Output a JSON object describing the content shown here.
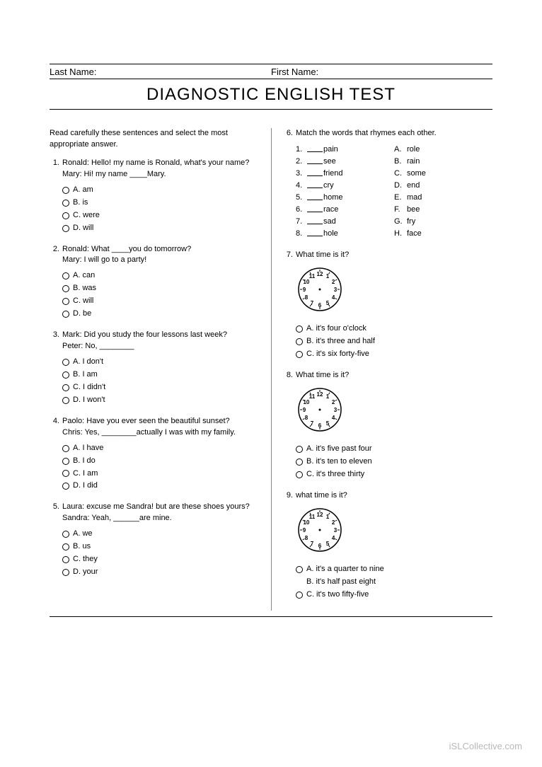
{
  "header": {
    "last_name_label": "Last Name:",
    "first_name_label": "First Name:",
    "title": "DIAGNOSTIC ENGLISH TEST"
  },
  "instructions": "Read carefully these sentences and select the most appropriate answer.",
  "questions_left": [
    {
      "num": "1.",
      "lines": [
        "Ronald: Hello! my name is Ronald, what's your name?",
        "Mary: Hi! my name ____Mary."
      ],
      "opts": [
        "A. am",
        "B. is",
        "C. were",
        "D. will"
      ]
    },
    {
      "num": "2.",
      "lines": [
        "Ronald: What ____you do tomorrow?",
        "Mary: I will go to a party!"
      ],
      "opts": [
        "A. can",
        "B. was",
        "C. will",
        "D. be"
      ]
    },
    {
      "num": "3.",
      "lines": [
        "Mark: Did you study the four lessons last week?",
        "Peter: No, ________"
      ],
      "opts": [
        "A. I don't",
        "B. I am",
        "C. I didn't",
        "D. I won't"
      ]
    },
    {
      "num": "4.",
      "lines": [
        "Paolo: Have you ever seen the beautiful sunset?",
        "Chris: Yes, ________actually I was with my family."
      ],
      "opts": [
        "A. I have",
        "B. I do",
        "C. I am",
        "D. I did"
      ]
    },
    {
      "num": "5.",
      "lines": [
        "Laura: excuse me Sandra! but are these shoes yours?",
        "Sandra: Yeah, ______are mine."
      ],
      "opts": [
        "A. we",
        "B. us",
        "C. they",
        "D. your"
      ]
    }
  ],
  "q6": {
    "num": "6.",
    "text": "Match the words that rhymes each other.",
    "left": [
      {
        "n": "1.",
        "w": "pain"
      },
      {
        "n": "2.",
        "w": "see"
      },
      {
        "n": "3.",
        "w": "friend"
      },
      {
        "n": "4.",
        "w": "cry"
      },
      {
        "n": "5.",
        "w": "home"
      },
      {
        "n": "6.",
        "w": "race"
      },
      {
        "n": "7.",
        "w": "sad"
      },
      {
        "n": "8.",
        "w": "hole"
      }
    ],
    "right": [
      {
        "l": "A.",
        "w": "role"
      },
      {
        "l": "B.",
        "w": "rain"
      },
      {
        "l": "C.",
        "w": "some"
      },
      {
        "l": "D.",
        "w": "end"
      },
      {
        "l": "E.",
        "w": "mad"
      },
      {
        "l": "F.",
        "w": "bee"
      },
      {
        "l": "G.",
        "w": "fry"
      },
      {
        "l": "H.",
        "w": "face"
      }
    ]
  },
  "time_questions": [
    {
      "num": "7.",
      "text": "What time is it?",
      "opts": [
        "A. it's four o'clock",
        "B. it's three and half",
        "C. it's six forty-five"
      ],
      "radios": [
        true,
        true,
        true
      ]
    },
    {
      "num": "8.",
      "text": "What time is it?",
      "opts": [
        "A. it's five past four",
        "B. it's ten to eleven",
        "C. it's three thirty"
      ],
      "radios": [
        true,
        true,
        true
      ]
    },
    {
      "num": "9.",
      "text": "what time is it?",
      "opts": [
        "A. it's a quarter to nine",
        "B. it's half past eight",
        "C. it's two fifty-five"
      ],
      "radios": [
        true,
        false,
        true
      ]
    }
  ],
  "clock": {
    "numbers": [
      "12",
      "1",
      "2",
      "3",
      "4",
      "5",
      "6",
      "7",
      "8",
      "9",
      "10",
      "11"
    ],
    "radius": 30,
    "num_radius": 22,
    "font_size": 8,
    "stroke": "#000",
    "dot_r": 1.5
  },
  "watermark": "iSLCollective.com",
  "colors": {
    "text": "#000000",
    "bg": "#ffffff",
    "divider": "#888888",
    "watermark": "#b8b8b8"
  }
}
